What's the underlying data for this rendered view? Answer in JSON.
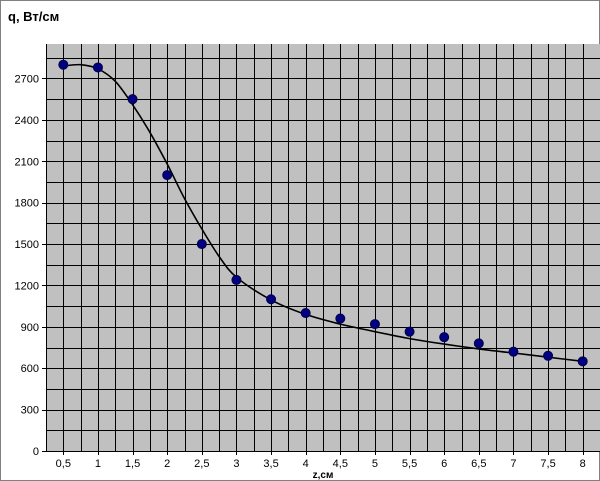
{
  "chart_data": {
    "type": "scatter",
    "title": "q, Вт/см",
    "xlabel": "z,см",
    "ylabel": "",
    "x_tick_labels": [
      "0,5",
      "1",
      "1,5",
      "2",
      "2,5",
      "3",
      "3,5",
      "4",
      "4,5",
      "5",
      "5,5",
      "6",
      "6,5",
      "7",
      "7,5",
      "8"
    ],
    "y_tick_labels": [
      "0",
      "300",
      "600",
      "900",
      "1200",
      "1500",
      "1800",
      "2100",
      "2400",
      "2700"
    ],
    "xlim": [
      0.25,
      8.25
    ],
    "ylim": [
      0,
      2950
    ],
    "grid": true,
    "legend": "none",
    "series": [
      {
        "kind": "points",
        "x": [
          0.5,
          1,
          1.5,
          2,
          2.5,
          3,
          3.5,
          4,
          4.5,
          5,
          5.5,
          6,
          6.5,
          7,
          7.5,
          8
        ],
        "y": [
          2800,
          2780,
          2550,
          2000,
          1500,
          1240,
          1100,
          1000,
          960,
          920,
          865,
          825,
          780,
          720,
          690,
          650
        ]
      },
      {
        "kind": "trend_curve",
        "x": [
          0.5,
          0.75,
          1,
          1.25,
          1.5,
          1.75,
          2,
          2.25,
          2.5,
          2.75,
          3,
          3.5,
          4,
          4.5,
          5,
          5.5,
          6,
          6.5,
          7,
          7.5,
          8
        ],
        "y": [
          2790,
          2800,
          2770,
          2680,
          2510,
          2310,
          2080,
          1830,
          1610,
          1410,
          1260,
          1095,
          990,
          920,
          865,
          815,
          775,
          740,
          710,
          680,
          650
        ]
      }
    ],
    "colors": {
      "plot_background": "#c0c0c0",
      "grid": "#000000",
      "marker": "#000080",
      "curve": "#000000",
      "page_background": "#ffffff"
    }
  }
}
